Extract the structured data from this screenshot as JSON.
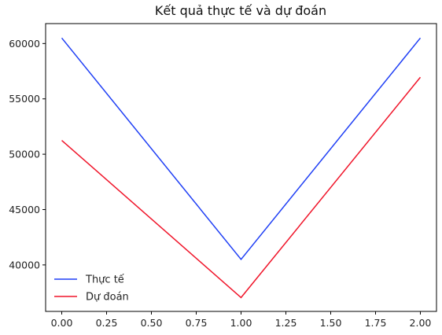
{
  "chart_data": {
    "type": "line",
    "title": "Kết quả thực tế và dự đoán",
    "xlabel": "",
    "ylabel": "",
    "x": [
      0.0,
      1.0,
      2.0
    ],
    "series": [
      {
        "name": "Thực tế",
        "color": "#1f3ff5",
        "values": [
          60500,
          40500,
          60500
        ]
      },
      {
        "name": "Dự đoán",
        "color": "#f0152a",
        "values": [
          51250,
          37050,
          56950
        ]
      }
    ],
    "xlim": [
      -0.09,
      2.09
    ],
    "ylim": [
      35800,
      61800
    ],
    "x_ticks": [
      0.0,
      0.25,
      0.5,
      0.75,
      1.0,
      1.25,
      1.5,
      1.75,
      2.0
    ],
    "x_tick_labels": [
      "0.00",
      "0.25",
      "0.50",
      "0.75",
      "1.00",
      "1.25",
      "1.50",
      "1.75",
      "2.00"
    ],
    "y_ticks": [
      40000,
      45000,
      50000,
      55000,
      60000
    ],
    "y_tick_labels": [
      "40000",
      "45000",
      "50000",
      "55000",
      "60000"
    ],
    "grid": false,
    "legend_position": "lower-left"
  }
}
